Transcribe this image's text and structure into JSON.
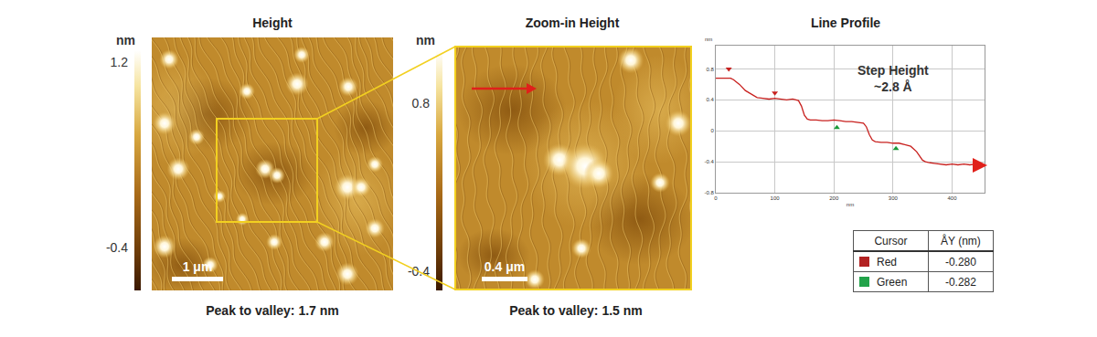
{
  "panels": [
    {
      "title": "Height",
      "colorbar": {
        "unit": "nm",
        "range": [
          -0.77,
          1.3
        ],
        "ticks": [
          1.2,
          -0.4
        ]
      },
      "scale_bar": "1 μm",
      "caption": "Peak to valley: 1.7 nm"
    },
    {
      "title": "Zoom-in Height",
      "colorbar": {
        "unit": "nm",
        "range": [
          -0.54,
          1.18
        ],
        "ticks": [
          0.8,
          -0.4
        ]
      },
      "scale_bar": "0.4 μm",
      "caption": "Peak to valley: 1.5 nm"
    }
  ],
  "chart_data": {
    "type": "line",
    "title": "Line Profile",
    "xlabel": "nm",
    "ylabel": "nm",
    "xlim": [
      0,
      455
    ],
    "ylim": [
      -0.8,
      1.1
    ],
    "xticks": [
      0,
      100,
      200,
      300,
      400
    ],
    "yticks": [
      -0.8,
      -0.4,
      0,
      0.4,
      0.8
    ],
    "grid": true,
    "x": [
      0,
      10,
      20,
      25,
      30,
      40,
      50,
      60,
      70,
      80,
      90,
      100,
      110,
      120,
      130,
      140,
      145,
      150,
      155,
      160,
      170,
      180,
      190,
      200,
      210,
      220,
      230,
      240,
      250,
      255,
      260,
      265,
      270,
      280,
      290,
      300,
      310,
      320,
      330,
      340,
      345,
      350,
      355,
      360,
      370,
      380,
      390,
      400,
      410,
      420,
      430,
      440,
      450
    ],
    "series": [
      {
        "type": "line",
        "color": "#c8201e",
        "values": [
          0.68,
          0.68,
          0.68,
          0.68,
          0.66,
          0.6,
          0.52,
          0.47,
          0.43,
          0.42,
          0.41,
          0.42,
          0.41,
          0.4,
          0.41,
          0.39,
          0.32,
          0.2,
          0.15,
          0.14,
          0.14,
          0.13,
          0.13,
          0.14,
          0.13,
          0.12,
          0.12,
          0.11,
          0.1,
          0.05,
          -0.05,
          -0.12,
          -0.14,
          -0.15,
          -0.15,
          -0.16,
          -0.16,
          -0.18,
          -0.2,
          -0.27,
          -0.33,
          -0.38,
          -0.4,
          -0.41,
          -0.42,
          -0.43,
          -0.44,
          -0.43,
          -0.44,
          -0.43,
          -0.44,
          -0.43,
          -0.42
        ]
      },
      {
        "type": "scatter",
        "marker": "triangle-down",
        "color": "#c8201e",
        "x": [
          22,
          100
        ],
        "values": [
          0.8,
          0.49
        ]
      },
      {
        "type": "scatter",
        "marker": "triangle-up",
        "color": "#1a9a3a",
        "x": [
          205,
          305
        ],
        "values": [
          0.04,
          -0.23
        ]
      }
    ],
    "annotations": [
      {
        "lines": [
          "Step Height",
          "~2.8 Å"
        ],
        "x": 300,
        "y": 0.68
      }
    ]
  },
  "table": {
    "header": [
      "Cursor",
      "ÅY (nm)"
    ],
    "rows": [
      {
        "color": "#b22222",
        "cells": [
          "Red",
          "-0.280"
        ]
      },
      {
        "color": "#22a34a",
        "cells": [
          "Green",
          "-0.282"
        ]
      }
    ]
  }
}
